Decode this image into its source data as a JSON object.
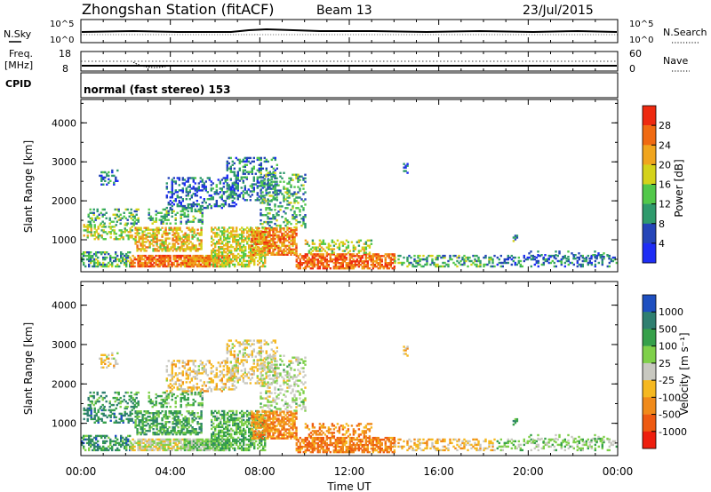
{
  "header": {
    "station": "Zhongshan Station (fitACF)",
    "beam": "Beam 13",
    "date": "23/Jul/2015"
  },
  "strips": {
    "nsky_label": "N.Sky",
    "nsearch_label": "N.Search",
    "noise_ticks": [
      "10^5",
      "10^0"
    ],
    "freq_label_1": "Freq.",
    "freq_label_2": "[MHz]",
    "freq_ticks": [
      "18",
      "8"
    ],
    "nave_label": "Nave",
    "nave_ticks": [
      "60",
      "0"
    ],
    "cpid_label": "CPID",
    "cpid_value": "normal (fast stereo) 153"
  },
  "colors": {
    "power": [
      "#1e2df5",
      "#2545b8",
      "#2f9a6c",
      "#52c84a",
      "#d4d21a",
      "#f0a51e",
      "#f06a12",
      "#ee2a10"
    ],
    "velocity": [
      "#1e4fc0",
      "#2f7f70",
      "#36a04a",
      "#7fd04a",
      "#c8c8c0",
      "#f5b820",
      "#f08a1a",
      "#ee5a12",
      "#ee1e0e"
    ]
  },
  "chart_data": [
    {
      "type": "heatmap",
      "name": "power",
      "ylabel": "Slant Range [km]",
      "xlabel": "",
      "xlim": [
        0,
        24
      ],
      "ylim": [
        180,
        4600
      ],
      "y_ticks": [
        1000,
        2000,
        3000,
        4000
      ],
      "colorbar_label": "Power [dB]",
      "colorbar_ticks": [
        "28",
        "24",
        "20",
        "16",
        "12",
        "8",
        "4"
      ],
      "colorbar_range": [
        0,
        32
      ]
    },
    {
      "type": "heatmap",
      "name": "velocity",
      "ylabel": "Slant Range [km]",
      "xlabel": "Time UT",
      "xlim": [
        0,
        24
      ],
      "ylim": [
        180,
        4600
      ],
      "x_tick_labels": [
        "00:00",
        "04:00",
        "08:00",
        "12:00",
        "16:00",
        "20:00",
        "00:00"
      ],
      "y_ticks": [
        1000,
        2000,
        3000,
        4000
      ],
      "colorbar_label": "Velocity [m s⁻¹]",
      "colorbar_ticks": [
        "1000",
        "500",
        "100",
        "25",
        "-25",
        "-100",
        "-500",
        "-1000"
      ]
    }
  ]
}
